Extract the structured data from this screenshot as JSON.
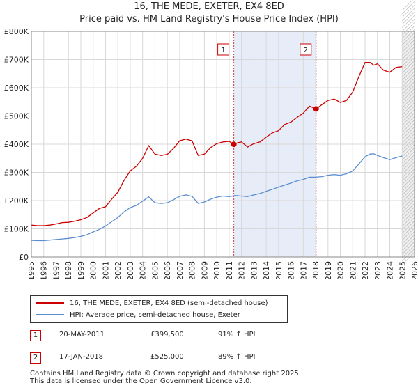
{
  "title": "16, THE MEDE, EXETER, EX4 8ED",
  "subtitle": "Price paid vs. HM Land Registry's House Price Index (HPI)",
  "chart_data": {
    "type": "line",
    "ylim": [
      0,
      800000
    ],
    "xlim": [
      1995,
      2026
    ],
    "y_ticks": [
      {
        "value": 0,
        "label": "£0"
      },
      {
        "value": 100000,
        "label": "£100K"
      },
      {
        "value": 200000,
        "label": "£200K"
      },
      {
        "value": 300000,
        "label": "£300K"
      },
      {
        "value": 400000,
        "label": "£400K"
      },
      {
        "value": 500000,
        "label": "£500K"
      },
      {
        "value": 600000,
        "label": "£600K"
      },
      {
        "value": 700000,
        "label": "£700K"
      },
      {
        "value": 800000,
        "label": "£800K"
      }
    ],
    "x_ticks": [
      "1995",
      "1996",
      "1997",
      "1998",
      "1999",
      "2000",
      "2001",
      "2002",
      "2003",
      "2004",
      "2005",
      "2006",
      "2007",
      "2008",
      "2009",
      "2010",
      "2011",
      "2012",
      "2013",
      "2014",
      "2015",
      "2016",
      "2017",
      "2018",
      "2019",
      "2020",
      "2021",
      "2022",
      "2023",
      "2024",
      "2025",
      "2026"
    ],
    "grid": true,
    "shaded_span": [
      2011.38,
      2018.04
    ],
    "forecast_start": 2025.0,
    "series": [
      {
        "name": "16, THE MEDE, EXETER, EX4 8ED (semi-detached house)",
        "color": "#cc0000",
        "x": [
          1995.0,
          1995.5,
          1996.0,
          1996.5,
          1997.0,
          1997.5,
          1998.0,
          1998.5,
          1999.0,
          1999.5,
          2000.0,
          2000.5,
          2001.0,
          2001.5,
          2002.0,
          2002.5,
          2003.0,
          2003.5,
          2004.0,
          2004.5,
          2005.0,
          2005.5,
          2006.0,
          2006.5,
          2007.0,
          2007.5,
          2008.0,
          2008.5,
          2009.0,
          2009.5,
          2010.0,
          2010.5,
          2011.0,
          2011.38,
          2011.7,
          2012.0,
          2012.5,
          2013.0,
          2013.5,
          2014.0,
          2014.5,
          2015.0,
          2015.5,
          2016.0,
          2016.5,
          2017.0,
          2017.5,
          2018.04,
          2018.5,
          2019.0,
          2019.5,
          2020.0,
          2020.5,
          2021.0,
          2021.5,
          2022.0,
          2022.4,
          2022.7,
          2023.0,
          2023.5,
          2024.0,
          2024.5,
          2025.0
        ],
        "values": [
          113000,
          111000,
          111000,
          113000,
          117000,
          122000,
          123000,
          127000,
          132000,
          140000,
          156000,
          172000,
          178000,
          205000,
          230000,
          272000,
          305000,
          322000,
          350000,
          395000,
          365000,
          360000,
          364000,
          385000,
          412000,
          418000,
          412000,
          360000,
          365000,
          388000,
          402000,
          408000,
          410000,
          399500,
          405000,
          408000,
          390000,
          402000,
          408000,
          425000,
          440000,
          448000,
          470000,
          478000,
          495000,
          510000,
          535000,
          525000,
          540000,
          555000,
          560000,
          548000,
          555000,
          585000,
          640000,
          690000,
          690000,
          680000,
          685000,
          662000,
          655000,
          672000,
          675000
        ]
      },
      {
        "name": "HPI: Average price, semi-detached house, Exeter",
        "color": "#5b8ed0",
        "x": [
          1995.0,
          1995.5,
          1996.0,
          1996.5,
          1997.0,
          1997.5,
          1998.0,
          1998.5,
          1999.0,
          1999.5,
          2000.0,
          2000.5,
          2001.0,
          2001.5,
          2002.0,
          2002.5,
          2003.0,
          2003.5,
          2004.0,
          2004.5,
          2005.0,
          2005.5,
          2006.0,
          2006.5,
          2007.0,
          2007.5,
          2008.0,
          2008.5,
          2009.0,
          2009.5,
          2010.0,
          2010.5,
          2011.0,
          2011.5,
          2012.0,
          2012.5,
          2013.0,
          2013.5,
          2014.0,
          2014.5,
          2015.0,
          2015.5,
          2016.0,
          2016.5,
          2017.0,
          2017.5,
          2018.0,
          2018.5,
          2019.0,
          2019.5,
          2020.0,
          2020.5,
          2021.0,
          2021.5,
          2022.0,
          2022.4,
          2022.7,
          2023.0,
          2023.5,
          2024.0,
          2024.5,
          2025.0
        ],
        "values": [
          59000,
          58000,
          58000,
          60000,
          62000,
          64000,
          66000,
          69000,
          73000,
          79000,
          89000,
          98000,
          110000,
          125000,
          140000,
          160000,
          175000,
          183000,
          198000,
          213000,
          192000,
          190000,
          192000,
          203000,
          215000,
          220000,
          215000,
          190000,
          195000,
          205000,
          212000,
          216000,
          214000,
          218000,
          216000,
          214000,
          220000,
          225000,
          233000,
          240000,
          248000,
          255000,
          262000,
          270000,
          275000,
          283000,
          283000,
          285000,
          290000,
          292000,
          290000,
          295000,
          305000,
          330000,
          355000,
          365000,
          366000,
          360000,
          352000,
          345000,
          352000,
          358000
        ]
      }
    ],
    "markers": [
      {
        "label": "1",
        "x": 2011.38,
        "value": 399500
      },
      {
        "label": "2",
        "x": 2018.04,
        "value": 525000
      }
    ]
  },
  "legend": [
    {
      "label": "16, THE MEDE, EXETER, EX4 8ED (semi-detached house)",
      "color": "#cc0000"
    },
    {
      "label": "HPI: Average price, semi-detached house, Exeter",
      "color": "#5b8ed0"
    }
  ],
  "transactions": [
    {
      "num": "1",
      "date": "20-MAY-2011",
      "price": "£399,500",
      "hpi": "91% ↑ HPI"
    },
    {
      "num": "2",
      "date": "17-JAN-2018",
      "price": "£525,000",
      "hpi": "89% ↑ HPI"
    }
  ],
  "footer": {
    "line1": "Contains HM Land Registry data © Crown copyright and database right 2025.",
    "line2": "This data is licensed under the Open Government Licence v3.0."
  }
}
